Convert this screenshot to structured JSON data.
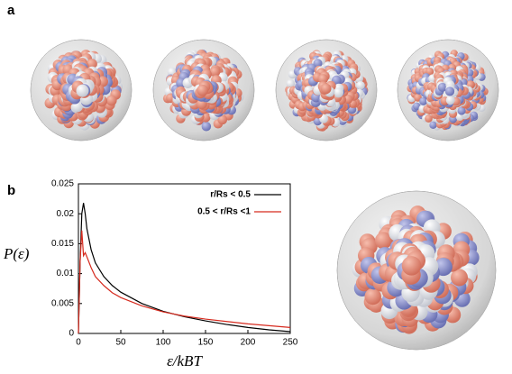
{
  "panel_labels": [
    "a",
    "b"
  ],
  "chart_data": {
    "type": "line",
    "x_label": "ε/kBT",
    "y_label": "P(ε)",
    "x": [
      0,
      2,
      4,
      6,
      8,
      10,
      15,
      20,
      30,
      40,
      50,
      75,
      100,
      125,
      150,
      175,
      200,
      225,
      250
    ],
    "series": [
      {
        "name": "r/Rs < 0.5",
        "color": "#000000",
        "values": [
          0,
          0.012,
          0.02,
          0.0218,
          0.02,
          0.0175,
          0.014,
          0.0118,
          0.0095,
          0.008,
          0.0069,
          0.005,
          0.0037,
          0.0028,
          0.0021,
          0.0015,
          0.001,
          0.0006,
          0.0003
        ]
      },
      {
        "name": "0.5 < r/Rs <1",
        "color": "#d62a1e",
        "values": [
          0,
          0.012,
          0.0172,
          0.013,
          0.0135,
          0.0128,
          0.011,
          0.0095,
          0.008,
          0.0068,
          0.006,
          0.0046,
          0.0036,
          0.0029,
          0.0024,
          0.002,
          0.0016,
          0.0013,
          0.001
        ]
      }
    ],
    "xlim": [
      0,
      250
    ],
    "xticks": [
      0,
      50,
      100,
      150,
      200,
      250
    ],
    "ylim": [
      0,
      0.025
    ],
    "yticks": [
      0,
      0.005,
      0.01,
      0.015,
      0.02,
      0.025
    ],
    "legend": "upper right"
  }
}
